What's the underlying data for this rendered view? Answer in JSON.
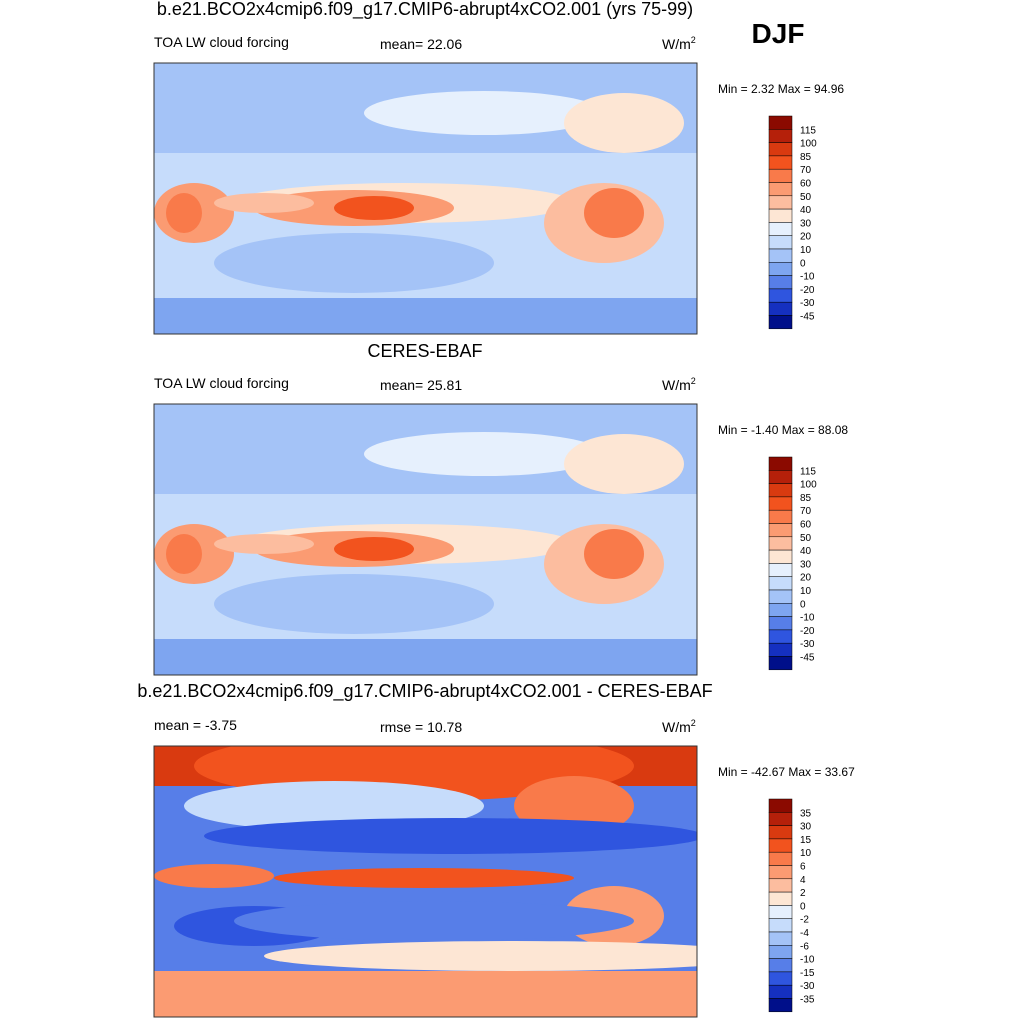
{
  "season": "DJF",
  "panels": [
    {
      "title": "b.e21.BCO2x4cmip6.f09_g17.CMIP6-abrupt4xCO2.001 (yrs 75-99)",
      "left": "TOA LW cloud forcing",
      "middle": "mean=  22.06",
      "units": "W/m",
      "units_sup": "2",
      "minmax": "Min =   2.32 Max =  94.96",
      "colorbar": [
        "115",
        "100",
        "85",
        "70",
        "60",
        "50",
        "40",
        "30",
        "20",
        "10",
        "0",
        "-10",
        "-20",
        "-30",
        "-45"
      ]
    },
    {
      "title": "CERES-EBAF",
      "left": "TOA LW cloud forcing",
      "middle": "mean=  25.81",
      "units": "W/m",
      "units_sup": "2",
      "minmax": "Min =  -1.40 Max =  88.08",
      "colorbar": [
        "115",
        "100",
        "85",
        "70",
        "60",
        "50",
        "40",
        "30",
        "20",
        "10",
        "0",
        "-10",
        "-20",
        "-30",
        "-45"
      ]
    },
    {
      "title": "b.e21.BCO2x4cmip6.f09_g17.CMIP6-abrupt4xCO2.001 - CERES-EBAF",
      "left": "mean =  -3.75",
      "middle": "rmse =  10.78",
      "units": "W/m",
      "units_sup": "2",
      "minmax": "Min = -42.67 Max =  33.67",
      "colorbar": [
        "35",
        "30",
        "15",
        "10",
        "6",
        "4",
        "2",
        "0",
        "-2",
        "-4",
        "-6",
        "-10",
        "-15",
        "-30",
        "-35"
      ]
    }
  ],
  "colors": [
    "#8b0a00",
    "#b5200a",
    "#d93a10",
    "#f2531e",
    "#f97a4a",
    "#fb9b72",
    "#fcbd9f",
    "#fde6d4",
    "#e6f0fd",
    "#c6dcfb",
    "#a4c3f7",
    "#7ea5f0",
    "#577ee8",
    "#2f55df",
    "#1530c0",
    "#000f8a"
  ]
}
